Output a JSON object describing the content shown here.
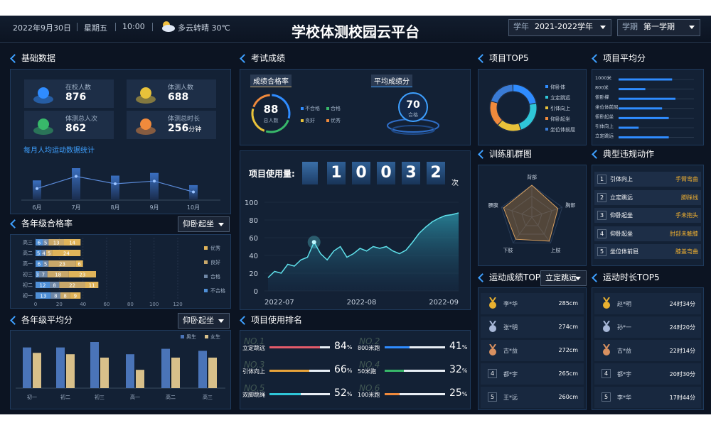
{
  "header": {
    "date": "2022年9月30日",
    "weekday": "星期五",
    "time": "10:00",
    "weather": "多云转晴 30℃",
    "title": "学校体测校园云平台",
    "year_label": "学年",
    "year": "2021-2022学年",
    "term_label": "学期",
    "term": "第一学期"
  },
  "basic_data": {
    "title": "基础数据",
    "stats": [
      {
        "label": "在校人数",
        "value": 876
      },
      {
        "label": "体测人数",
        "value": 688
      },
      {
        "label": "体测总人次",
        "value": 862
      },
      {
        "label": "体测总时长",
        "value": 256,
        "unit": "分钟"
      }
    ],
    "monthly": {
      "title": "每月人均运动数据统计",
      "categories": [
        "6月",
        "7月",
        "8月",
        "9月",
        "10月"
      ],
      "bar_values": [
        29,
        47,
        36,
        40,
        22
      ],
      "line_values": [
        17,
        35,
        24,
        28,
        12
      ]
    }
  },
  "grade_pass": {
    "title": "各年级合格率",
    "selector": "仰卧起坐",
    "categories": [
      "高三",
      "高二",
      "高一",
      "初三",
      "初二",
      "初一"
    ],
    "series": [
      {
        "name": "优秀",
        "color": "#e0b45a",
        "values": [
          14,
          24,
          6,
          23,
          11,
          9
        ]
      },
      {
        "name": "良好",
        "color": "#c9a86a",
        "values": [
          13,
          5,
          23,
          18,
          22,
          8
        ]
      },
      {
        "name": "合格",
        "color": "#6f87a6",
        "values": [
          5,
          4,
          5,
          7,
          8,
          8
        ]
      },
      {
        "name": "不合格",
        "color": "#4f8fd6",
        "values": [
          6,
          5,
          6,
          3,
          12,
          13
        ]
      }
    ],
    "xlim": [
      0,
      120
    ],
    "xticks": [
      0,
      20,
      40,
      60,
      80,
      100,
      120
    ]
  },
  "grade_avg": {
    "title": "各年级平均分",
    "selector": "仰卧起坐",
    "categories": [
      "初一",
      "初二",
      "初三",
      "高一",
      "高二",
      "高三"
    ],
    "series": [
      {
        "name": "男生",
        "color": "#4a74b8",
        "values": [
          60,
          60,
          68,
          50,
          58,
          55
        ]
      },
      {
        "name": "女生",
        "color": "#d8c08a",
        "values": [
          52,
          50,
          45,
          27,
          45,
          45
        ]
      }
    ]
  },
  "exam": {
    "title": "考试成绩",
    "pass_rate": {
      "label": "成绩合格率",
      "value": 88,
      "caption": "总人数",
      "legend": [
        {
          "name": "不合格",
          "color": "#2f8cff"
        },
        {
          "name": "合格",
          "color": "#38b86a"
        },
        {
          "name": "良好",
          "color": "#e8c23a"
        },
        {
          "name": "优秀",
          "color": "#f08a3c"
        }
      ]
    },
    "average": {
      "label": "平均成绩分",
      "value": 70,
      "caption": "合格"
    }
  },
  "usage": {
    "label": "项目使用量:",
    "digits": [
      "1",
      "0",
      "0",
      "3",
      "2"
    ],
    "unit": "次",
    "chart": {
      "type": "area",
      "values": [
        15,
        22,
        20,
        30,
        28,
        35,
        38,
        55,
        42,
        35,
        45,
        50,
        38,
        42,
        48,
        45,
        50,
        48,
        50,
        45,
        42,
        46,
        55,
        65,
        72,
        78,
        82,
        85,
        86,
        88
      ],
      "ylim": [
        0,
        100
      ],
      "yticks": [
        0,
        20,
        40,
        60,
        80,
        100
      ],
      "xtick_labels": [
        "2022-07",
        "2022-08",
        "2022-09"
      ]
    }
  },
  "ranking": {
    "title": "项目使用排名",
    "unit": "%",
    "items": [
      {
        "rank": "NO.1",
        "name": "立定跳远",
        "value": 84,
        "color": "#e45b6a"
      },
      {
        "rank": "NO.2",
        "name": "800米跑",
        "value": 41,
        "color": "#2f8cff"
      },
      {
        "rank": "NO.3",
        "name": "引体向上",
        "value": 66,
        "color": "#e8a33a"
      },
      {
        "rank": "NO.4",
        "name": "50米跑",
        "value": 32,
        "color": "#38b86a"
      },
      {
        "rank": "NO.5",
        "name": "双脚跳绳",
        "value": 52,
        "color": "#2fc6d8"
      },
      {
        "rank": "NO.6",
        "name": "100米跑",
        "value": 25,
        "color": "#f08a3c"
      }
    ]
  },
  "top5": {
    "title": "项目TOP5",
    "legend": [
      {
        "name": "仰卧体",
        "color": "#2f8cff"
      },
      {
        "name": "立定跳远",
        "color": "#2fc6d8"
      },
      {
        "name": "引体向上",
        "color": "#e8c23a"
      },
      {
        "name": "仰卧起坐",
        "color": "#f08a3c"
      },
      {
        "name": "坐位体前屈",
        "color": "#3a7bd5"
      }
    ]
  },
  "project_avg": {
    "title": "项目平均分",
    "categories": [
      "1000米",
      "800米",
      "俯卧撑",
      "坐位体前屈",
      "俯卧起坐",
      "引体向上",
      "立定跳远"
    ],
    "values": [
      80,
      40,
      85,
      65,
      75,
      30,
      75
    ]
  },
  "muscle": {
    "title": "训练肌群图",
    "axes": [
      "背部",
      "胸部",
      "上肢",
      "下肢",
      "腰腹"
    ],
    "values": [
      70,
      60,
      65,
      60,
      65
    ]
  },
  "violations": {
    "title": "典型违规动作",
    "rows": [
      {
        "rank": "1",
        "item": "引体向上",
        "action": "手臂弯曲"
      },
      {
        "rank": "2",
        "item": "立定跳远",
        "action": "脚踩线"
      },
      {
        "rank": "3",
        "item": "仰卧起坐",
        "action": "手未抱头"
      },
      {
        "rank": "4",
        "item": "仰卧起坐",
        "action": "肘部未触膝"
      },
      {
        "rank": "5",
        "item": "坐位体前屈",
        "action": "膝盖弯曲"
      }
    ]
  },
  "score_top5": {
    "title": "运动成绩TOP5",
    "selector": "立定跳远",
    "rows": [
      {
        "name": "李*华",
        "score": "285cm"
      },
      {
        "name": "张*明",
        "score": "274cm"
      },
      {
        "name": "古*益",
        "score": "272cm"
      },
      {
        "rank": "4",
        "name": "都*宇",
        "score": "265cm"
      },
      {
        "rank": "5",
        "name": "王*远",
        "score": "260cm"
      }
    ]
  },
  "time_top5": {
    "title": "运动时长TOP5",
    "rows": [
      {
        "name": "赵*明",
        "score": "24时34分"
      },
      {
        "name": "孙*一",
        "score": "24时20分"
      },
      {
        "name": "古*益",
        "score": "22时14分"
      },
      {
        "rank": "4",
        "name": "都*宇",
        "score": "20时30分"
      },
      {
        "rank": "5",
        "name": "李*华",
        "score": "17时44分"
      }
    ]
  }
}
